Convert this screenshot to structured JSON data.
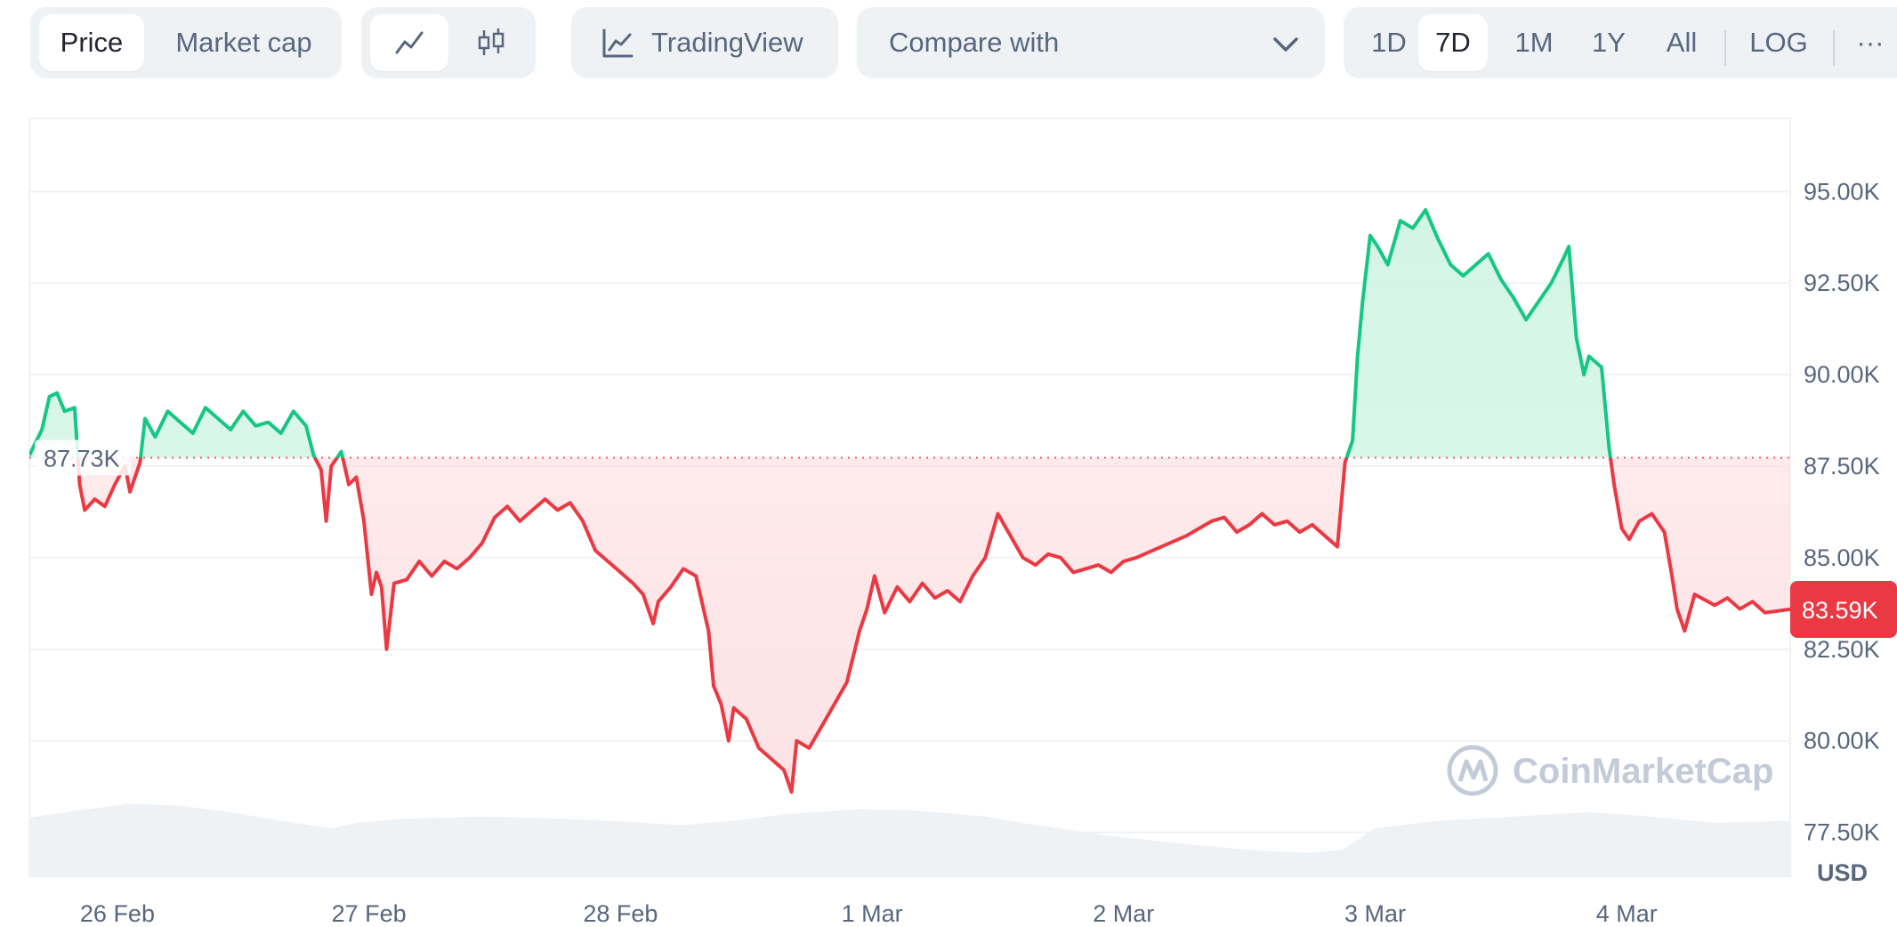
{
  "toolbar": {
    "metric_tabs": [
      {
        "label": "Price",
        "active": true
      },
      {
        "label": "Market cap",
        "active": false
      }
    ],
    "chart_style_icons": [
      "line-chart-icon",
      "candlestick-icon"
    ],
    "tradingview_label": "TradingView",
    "compare_label": "Compare with",
    "ranges": [
      {
        "label": "1D",
        "active": false
      },
      {
        "label": "7D",
        "active": true
      },
      {
        "label": "1M",
        "active": false
      },
      {
        "label": "1Y",
        "active": false
      },
      {
        "label": "All",
        "active": false
      }
    ],
    "log_label": "LOG",
    "more_label": "···"
  },
  "colors": {
    "up": "#16c784",
    "down": "#ea3943",
    "up_fill": "#d3f5e6",
    "down_fill": "#fde2e4",
    "grid": "#eff2f5",
    "volume": "#eff2f5"
  },
  "chart_data": {
    "type": "area",
    "reference_value": 87.73,
    "reference_label": "87.73K",
    "current_value": 83.59,
    "current_label": "83.59K",
    "unit_label": "USD",
    "watermark": "CoinMarketCap",
    "y_ticks": [
      {
        "value": 77.5,
        "label": "77.50K"
      },
      {
        "value": 80.0,
        "label": "80.00K"
      },
      {
        "value": 82.5,
        "label": "82.50K"
      },
      {
        "value": 85.0,
        "label": "85.00K"
      },
      {
        "value": 87.5,
        "label": "87.50K"
      },
      {
        "value": 90.0,
        "label": "90.00K"
      },
      {
        "value": 92.5,
        "label": "92.50K"
      },
      {
        "value": 95.0,
        "label": "95.00K"
      }
    ],
    "ylim": [
      76.3,
      97.0
    ],
    "x_ticks": [
      {
        "value": 0.35,
        "label": "26 Feb"
      },
      {
        "value": 1.35,
        "label": "27 Feb"
      },
      {
        "value": 2.35,
        "label": "28 Feb"
      },
      {
        "value": 3.35,
        "label": "1 Mar"
      },
      {
        "value": 4.35,
        "label": "2 Mar"
      },
      {
        "value": 5.35,
        "label": "3 Mar"
      },
      {
        "value": 6.35,
        "label": "4 Mar"
      }
    ],
    "xlim": [
      0,
      7
    ],
    "price": [
      [
        0.0,
        87.8
      ],
      [
        0.05,
        88.5
      ],
      [
        0.08,
        89.4
      ],
      [
        0.11,
        89.5
      ],
      [
        0.14,
        89.0
      ],
      [
        0.18,
        89.1
      ],
      [
        0.2,
        87.0
      ],
      [
        0.22,
        86.3
      ],
      [
        0.26,
        86.6
      ],
      [
        0.3,
        86.4
      ],
      [
        0.34,
        87.0
      ],
      [
        0.38,
        87.5
      ],
      [
        0.4,
        86.8
      ],
      [
        0.44,
        87.6
      ],
      [
        0.46,
        88.8
      ],
      [
        0.5,
        88.3
      ],
      [
        0.55,
        89.0
      ],
      [
        0.6,
        88.7
      ],
      [
        0.65,
        88.4
      ],
      [
        0.7,
        89.1
      ],
      [
        0.75,
        88.8
      ],
      [
        0.8,
        88.5
      ],
      [
        0.85,
        89.0
      ],
      [
        0.9,
        88.6
      ],
      [
        0.95,
        88.7
      ],
      [
        1.0,
        88.4
      ],
      [
        1.05,
        89.0
      ],
      [
        1.1,
        88.6
      ],
      [
        1.13,
        87.8
      ],
      [
        1.16,
        87.4
      ],
      [
        1.18,
        86.0
      ],
      [
        1.2,
        87.5
      ],
      [
        1.24,
        87.9
      ],
      [
        1.27,
        87.0
      ],
      [
        1.3,
        87.2
      ],
      [
        1.33,
        86.0
      ],
      [
        1.36,
        84.0
      ],
      [
        1.38,
        84.6
      ],
      [
        1.4,
        84.2
      ],
      [
        1.42,
        82.5
      ],
      [
        1.45,
        84.3
      ],
      [
        1.5,
        84.4
      ],
      [
        1.55,
        84.9
      ],
      [
        1.6,
        84.5
      ],
      [
        1.65,
        84.9
      ],
      [
        1.7,
        84.7
      ],
      [
        1.75,
        85.0
      ],
      [
        1.8,
        85.4
      ],
      [
        1.85,
        86.1
      ],
      [
        1.9,
        86.4
      ],
      [
        1.95,
        86.0
      ],
      [
        2.0,
        86.3
      ],
      [
        2.05,
        86.6
      ],
      [
        2.1,
        86.3
      ],
      [
        2.15,
        86.5
      ],
      [
        2.2,
        86.0
      ],
      [
        2.25,
        85.2
      ],
      [
        2.3,
        84.9
      ],
      [
        2.35,
        84.6
      ],
      [
        2.4,
        84.3
      ],
      [
        2.44,
        84.0
      ],
      [
        2.48,
        83.2
      ],
      [
        2.5,
        83.8
      ],
      [
        2.55,
        84.2
      ],
      [
        2.6,
        84.7
      ],
      [
        2.65,
        84.5
      ],
      [
        2.7,
        83.0
      ],
      [
        2.72,
        81.5
      ],
      [
        2.75,
        81.0
      ],
      [
        2.78,
        80.0
      ],
      [
        2.8,
        80.9
      ],
      [
        2.85,
        80.6
      ],
      [
        2.9,
        79.8
      ],
      [
        2.95,
        79.5
      ],
      [
        3.0,
        79.2
      ],
      [
        3.03,
        78.6
      ],
      [
        3.05,
        80.0
      ],
      [
        3.1,
        79.8
      ],
      [
        3.15,
        80.4
      ],
      [
        3.2,
        81.0
      ],
      [
        3.25,
        81.6
      ],
      [
        3.3,
        83.0
      ],
      [
        3.33,
        83.6
      ],
      [
        3.36,
        84.5
      ],
      [
        3.4,
        83.5
      ],
      [
        3.45,
        84.2
      ],
      [
        3.5,
        83.8
      ],
      [
        3.55,
        84.3
      ],
      [
        3.6,
        83.9
      ],
      [
        3.65,
        84.1
      ],
      [
        3.7,
        83.8
      ],
      [
        3.75,
        84.5
      ],
      [
        3.8,
        85.0
      ],
      [
        3.85,
        86.2
      ],
      [
        3.9,
        85.6
      ],
      [
        3.95,
        85.0
      ],
      [
        4.0,
        84.8
      ],
      [
        4.05,
        85.1
      ],
      [
        4.1,
        85.0
      ],
      [
        4.15,
        84.6
      ],
      [
        4.2,
        84.7
      ],
      [
        4.25,
        84.8
      ],
      [
        4.3,
        84.6
      ],
      [
        4.35,
        84.9
      ],
      [
        4.4,
        85.0
      ],
      [
        4.5,
        85.3
      ],
      [
        4.6,
        85.6
      ],
      [
        4.65,
        85.8
      ],
      [
        4.7,
        86.0
      ],
      [
        4.75,
        86.1
      ],
      [
        4.8,
        85.7
      ],
      [
        4.85,
        85.9
      ],
      [
        4.9,
        86.2
      ],
      [
        4.95,
        85.9
      ],
      [
        5.0,
        86.0
      ],
      [
        5.05,
        85.7
      ],
      [
        5.1,
        85.9
      ],
      [
        5.15,
        85.6
      ],
      [
        5.2,
        85.3
      ],
      [
        5.23,
        87.6
      ],
      [
        5.26,
        88.2
      ],
      [
        5.28,
        90.5
      ],
      [
        5.3,
        92.0
      ],
      [
        5.33,
        93.8
      ],
      [
        5.36,
        93.5
      ],
      [
        5.4,
        93.0
      ],
      [
        5.45,
        94.2
      ],
      [
        5.5,
        94.0
      ],
      [
        5.55,
        94.5
      ],
      [
        5.6,
        93.7
      ],
      [
        5.65,
        93.0
      ],
      [
        5.7,
        92.7
      ],
      [
        5.75,
        93.0
      ],
      [
        5.8,
        93.3
      ],
      [
        5.85,
        92.6
      ],
      [
        5.9,
        92.1
      ],
      [
        5.95,
        91.5
      ],
      [
        6.0,
        92.0
      ],
      [
        6.05,
        92.5
      ],
      [
        6.1,
        93.2
      ],
      [
        6.12,
        93.5
      ],
      [
        6.15,
        91.0
      ],
      [
        6.18,
        90.0
      ],
      [
        6.2,
        90.5
      ],
      [
        6.25,
        90.2
      ],
      [
        6.28,
        88.0
      ],
      [
        6.3,
        87.0
      ],
      [
        6.33,
        85.8
      ],
      [
        6.36,
        85.5
      ],
      [
        6.4,
        86.0
      ],
      [
        6.45,
        86.2
      ],
      [
        6.5,
        85.7
      ],
      [
        6.53,
        84.5
      ],
      [
        6.55,
        83.6
      ],
      [
        6.58,
        83.0
      ],
      [
        6.62,
        84.0
      ],
      [
        6.7,
        83.7
      ],
      [
        6.75,
        83.9
      ],
      [
        6.8,
        83.6
      ],
      [
        6.85,
        83.8
      ],
      [
        6.9,
        83.5
      ],
      [
        7.0,
        83.59
      ]
    ],
    "volume": [
      [
        0.0,
        0.55
      ],
      [
        0.2,
        0.62
      ],
      [
        0.4,
        0.68
      ],
      [
        0.6,
        0.66
      ],
      [
        0.8,
        0.6
      ],
      [
        1.0,
        0.52
      ],
      [
        1.2,
        0.45
      ],
      [
        1.3,
        0.5
      ],
      [
        1.5,
        0.54
      ],
      [
        1.8,
        0.56
      ],
      [
        2.0,
        0.55
      ],
      [
        2.3,
        0.52
      ],
      [
        2.6,
        0.48
      ],
      [
        2.8,
        0.52
      ],
      [
        3.0,
        0.58
      ],
      [
        3.3,
        0.63
      ],
      [
        3.5,
        0.62
      ],
      [
        3.8,
        0.56
      ],
      [
        4.0,
        0.48
      ],
      [
        4.3,
        0.38
      ],
      [
        4.6,
        0.3
      ],
      [
        4.9,
        0.24
      ],
      [
        5.1,
        0.22
      ],
      [
        5.22,
        0.25
      ],
      [
        5.35,
        0.45
      ],
      [
        5.6,
        0.52
      ],
      [
        5.9,
        0.56
      ],
      [
        6.2,
        0.6
      ],
      [
        6.45,
        0.56
      ],
      [
        6.7,
        0.5
      ],
      [
        7.0,
        0.52
      ]
    ]
  }
}
